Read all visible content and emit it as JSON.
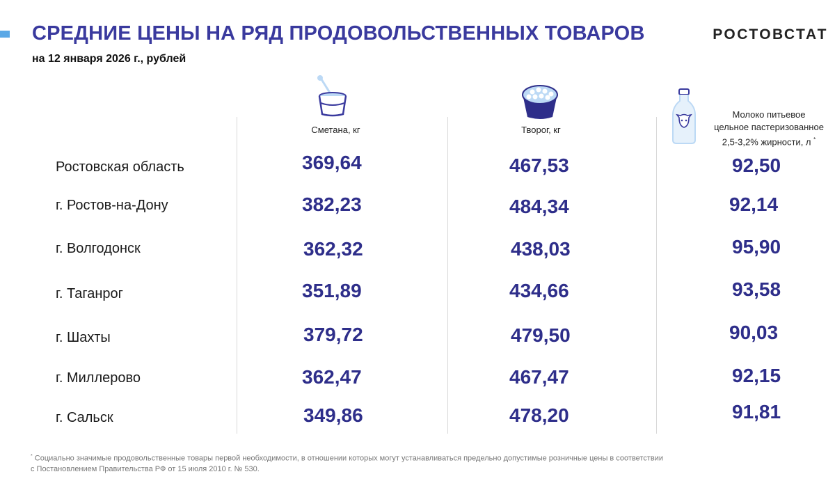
{
  "header": {
    "title": "СРЕДНИЕ ЦЕНЫ НА РЯД ПРОДОВОЛЬСТВЕННЫХ ТОВАРОВ",
    "subtitle": "на 12 января 2026 г., рублей",
    "brand": "РОСТОВСТАТ"
  },
  "columns": [
    {
      "label": "Сметана, кг",
      "icon": "sour-cream-cup-icon"
    },
    {
      "label": "Творог, кг",
      "icon": "cottage-cheese-bowl-icon"
    },
    {
      "label_lines": [
        "Молоко питьевое",
        "цельное пастеризованное",
        "2,5-3,2% жирности, л"
      ],
      "footnote_mark": "*",
      "icon": "milk-bottle-icon"
    }
  ],
  "rows": [
    {
      "region": "Ростовская область",
      "values": [
        "369,64",
        "467,53",
        "92,50"
      ]
    },
    {
      "region": "г. Ростов-на-Дону",
      "values": [
        "382,23",
        "484,34",
        "92,14"
      ]
    },
    {
      "region": "г. Волгодонск",
      "values": [
        "362,32",
        "438,03",
        "95,90"
      ]
    },
    {
      "region": "г. Таганрог",
      "values": [
        "351,89",
        "434,66",
        "93,58"
      ]
    },
    {
      "region": "г. Шахты",
      "values": [
        "379,72",
        "479,50",
        "90,03"
      ]
    },
    {
      "region": "г. Миллерово",
      "values": [
        "362,47",
        "467,47",
        "92,15"
      ]
    },
    {
      "region": "г. Сальск",
      "values": [
        "349,86",
        "478,20",
        "91,81"
      ]
    }
  ],
  "footnote": {
    "mark": "*",
    "line1": "Социально значимые продовольственные товары первой необходимости, в отношении которых могут устанавливаться предельно допустимые розничные цены в соответствии",
    "line2": "с Постановлением Правительства РФ от 15 июля 2010 г. № 530."
  },
  "colors": {
    "title": "#3a3a9e",
    "values": "#2e2e8a",
    "accent": "#5aa8e6",
    "icon_blue": "#3a3a9e",
    "icon_light": "#bcd9f5"
  }
}
